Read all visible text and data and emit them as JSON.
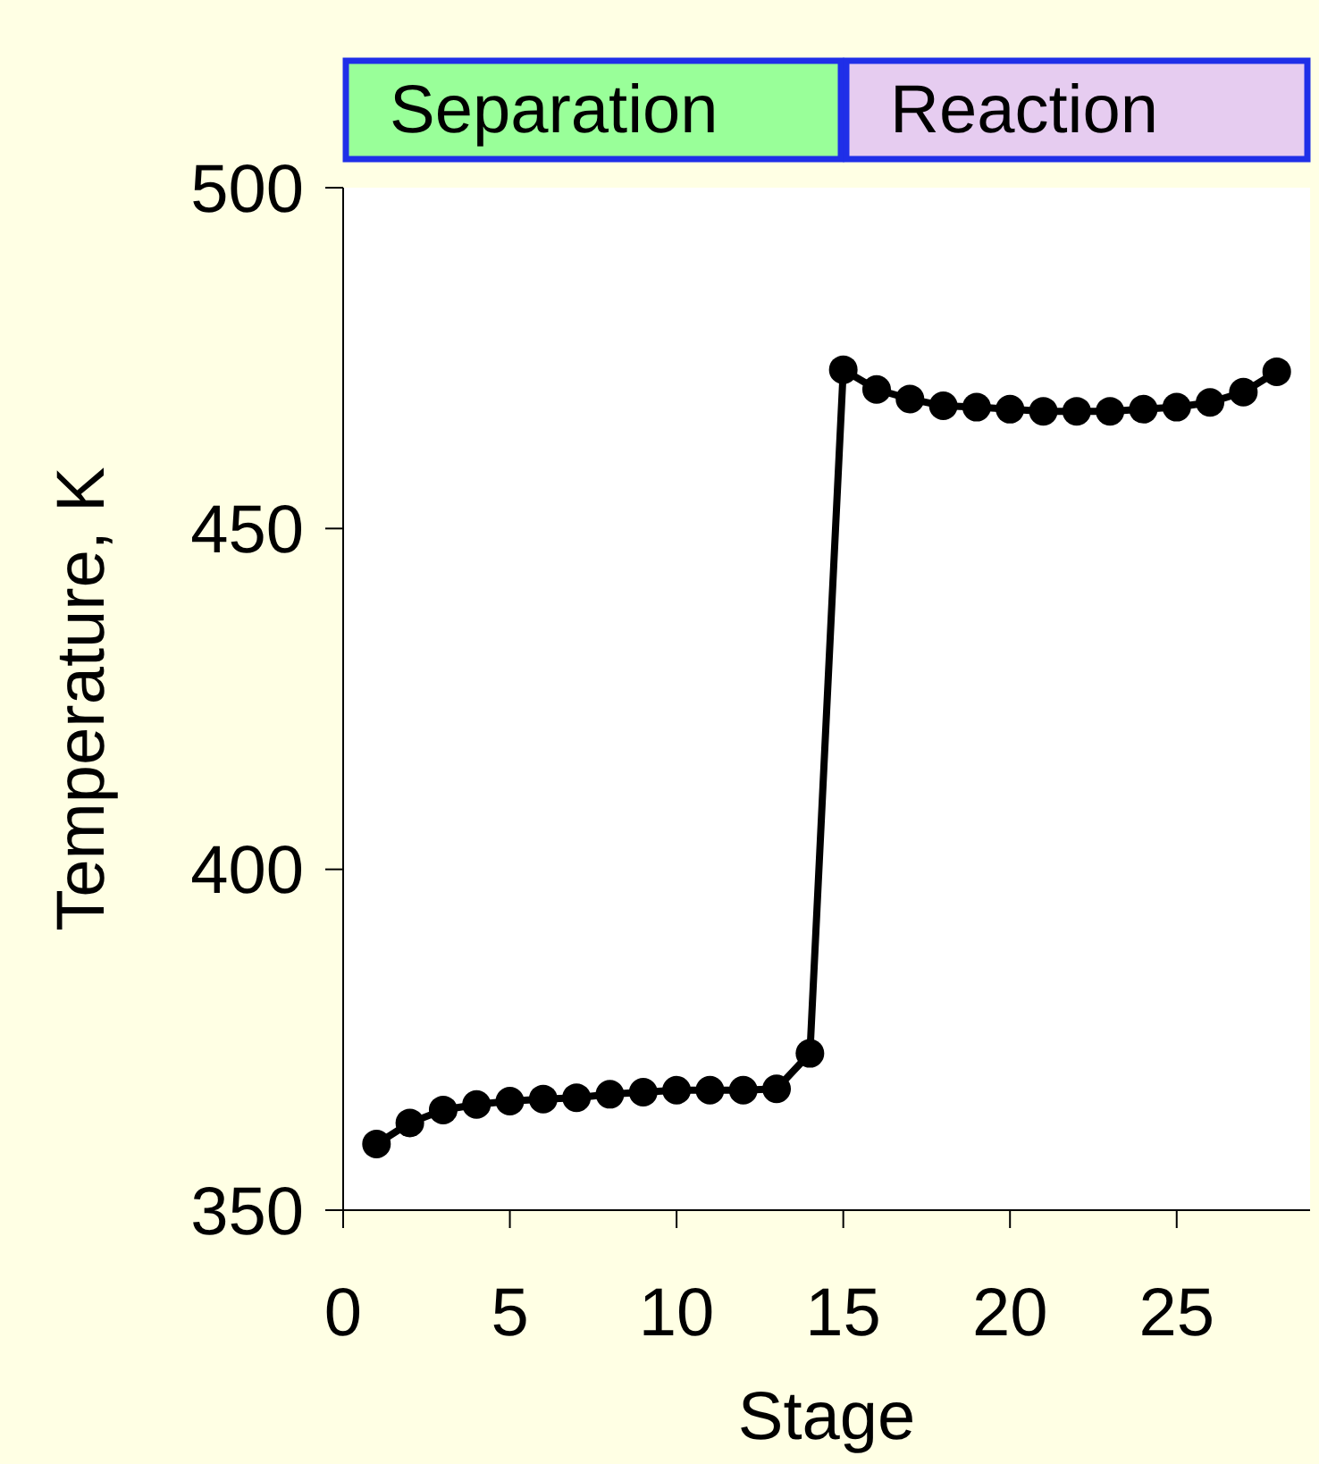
{
  "chart_data": {
    "type": "line",
    "xlabel": "Stage",
    "ylabel": "Temperature, K",
    "x": [
      1,
      2,
      3,
      4,
      5,
      6,
      7,
      8,
      9,
      10,
      11,
      12,
      13,
      14,
      15,
      16,
      17,
      18,
      19,
      20,
      21,
      22,
      23,
      24,
      25,
      26,
      27,
      28
    ],
    "series": [
      {
        "color": "#000000",
        "values": [
          359.7,
          362.8,
          364.7,
          365.5,
          366,
          366.3,
          366.5,
          367,
          367.3,
          367.6,
          367.6,
          367.6,
          367.8,
          373,
          473.3,
          470.4,
          469,
          468,
          467.8,
          467.5,
          467.2,
          467.2,
          467.2,
          467.5,
          467.8,
          468.5,
          470,
          473
        ]
      }
    ],
    "xlim": [
      0,
      29
    ],
    "ylim": [
      350,
      500
    ],
    "xticks": [
      0,
      5,
      10,
      15,
      20,
      25
    ],
    "yticks": [
      350,
      400,
      450,
      500
    ],
    "marker": "circle",
    "line_style": "solid",
    "grid": false,
    "annotations": [
      "Separation",
      "Reaction"
    ]
  }
}
